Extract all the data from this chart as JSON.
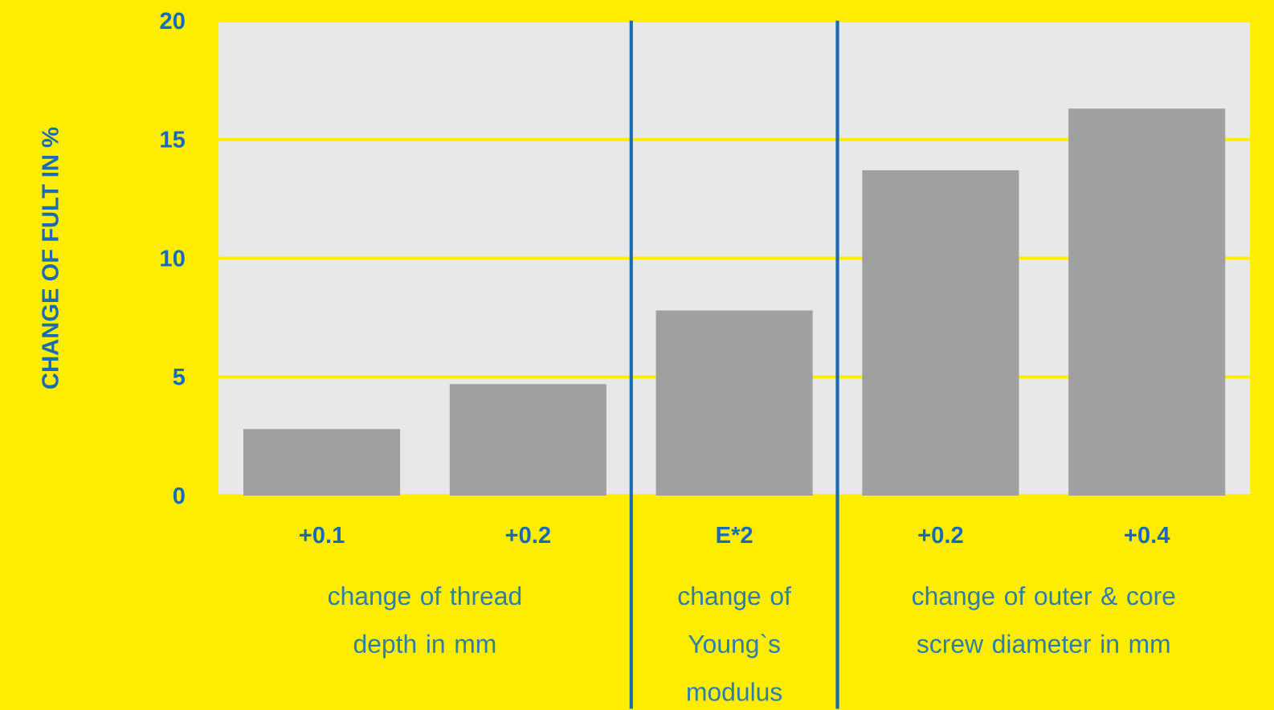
{
  "chart_data": {
    "type": "bar",
    "ylabel": "CHANGE OF FULT IN %",
    "categories": [
      "+0.1",
      "+0.2",
      "E*2",
      "+0.2",
      "+0.4"
    ],
    "values": [
      2.8,
      4.7,
      7.8,
      13.7,
      16.3
    ],
    "color": "#a0a0a0",
    "ylim": [
      0,
      20
    ],
    "yticks": [
      0,
      5,
      10,
      15,
      20
    ],
    "grid": "y",
    "annotations": [
      "change of thread depth in mm",
      "change of Young`s modulus",
      "change of outer & core screw diameter in mm"
    ]
  }
}
